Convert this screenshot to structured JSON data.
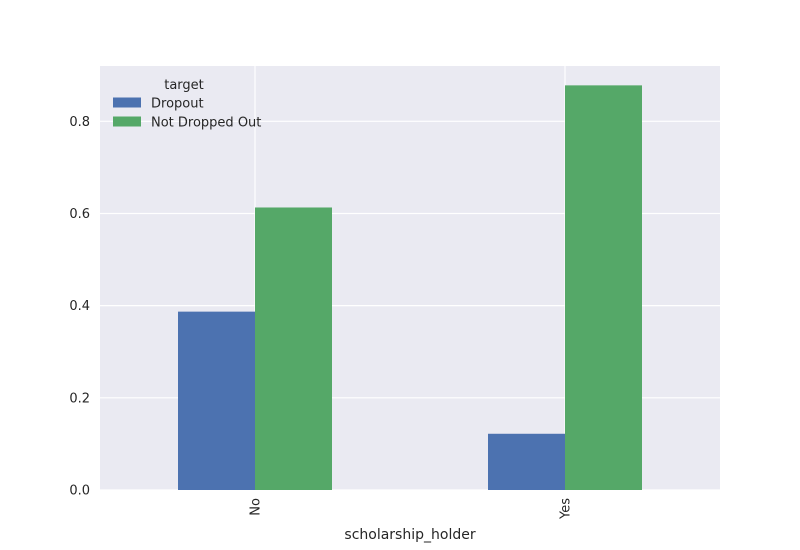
{
  "chart_data": {
    "type": "bar",
    "title": "",
    "xlabel": "scholarship_holder",
    "ylabel": "",
    "categories": [
      "No",
      "Yes"
    ],
    "series": [
      {
        "name": "Dropout",
        "values": [
          0.387,
          0.122
        ],
        "color": "#4c72b0"
      },
      {
        "name": "Not Dropped Out",
        "values": [
          0.613,
          0.878
        ],
        "color": "#55a868"
      }
    ],
    "ylim": [
      0,
      0.92
    ],
    "yticks": [
      0.0,
      0.2,
      0.4,
      0.6,
      0.8
    ],
    "ytick_labels": [
      "0.0",
      "0.2",
      "0.4",
      "0.6",
      "0.8"
    ],
    "grid": true,
    "legend": {
      "title": "target",
      "placement": "top-left"
    },
    "background": "#eaeaf2",
    "grid_color": "#ffffff"
  }
}
